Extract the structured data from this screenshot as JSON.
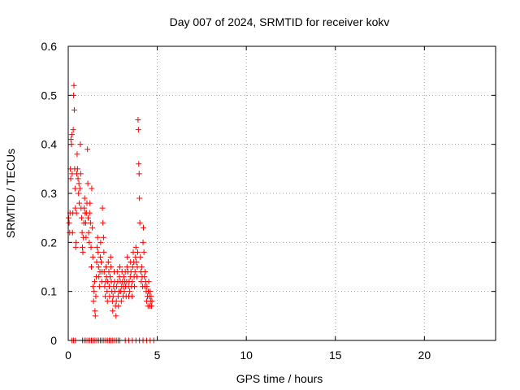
{
  "chart_data": {
    "type": "scatter",
    "title": "Day 007 of 2024, SRMTID for receiver kokv",
    "xlabel": "GPS time / hours",
    "ylabel": "SRMTID / TECUs",
    "xlim": [
      0,
      24
    ],
    "ylim": [
      0,
      0.6
    ],
    "x_ticks": [
      0,
      5,
      10,
      15,
      20
    ],
    "y_ticks": [
      0,
      0.1,
      0.2,
      0.3,
      0.4,
      0.5,
      0.6
    ],
    "grid": true,
    "marker": "+",
    "color": "#ff0000",
    "series": [
      {
        "name": "SRMTID",
        "points": [
          [
            0.02,
            0.25
          ],
          [
            0.05,
            0.24
          ],
          [
            0.08,
            0.22
          ],
          [
            0.1,
            0.26
          ],
          [
            0.12,
            0.35
          ],
          [
            0.14,
            0.33
          ],
          [
            0.15,
            0.41
          ],
          [
            0.18,
            0.4
          ],
          [
            0.2,
            0.42
          ],
          [
            0.22,
            0.34
          ],
          [
            0.24,
            0.22
          ],
          [
            0.26,
            0.26
          ],
          [
            0.28,
            0.43
          ],
          [
            0.3,
            0.5
          ],
          [
            0.32,
            0.52
          ],
          [
            0.34,
            0.47
          ],
          [
            0.36,
            0.35
          ],
          [
            0.38,
            0.31
          ],
          [
            0.4,
            0.27
          ],
          [
            0.42,
            0.19
          ],
          [
            0.44,
            0.2
          ],
          [
            0.46,
            0.26
          ],
          [
            0.48,
            0.34
          ],
          [
            0.5,
            0.38
          ],
          [
            0.52,
            0.35
          ],
          [
            0.55,
            0.33
          ],
          [
            0.58,
            0.3
          ],
          [
            0.6,
            0.32
          ],
          [
            0.62,
            0.28
          ],
          [
            0.65,
            0.31
          ],
          [
            0.68,
            0.4
          ],
          [
            0.7,
            0.34
          ],
          [
            0.72,
            0.27
          ],
          [
            0.75,
            0.25
          ],
          [
            0.78,
            0.22
          ],
          [
            0.8,
            0.19
          ],
          [
            0.82,
            0.18
          ],
          [
            0.85,
            0.21
          ],
          [
            0.88,
            0.24
          ],
          [
            0.9,
            0.27
          ],
          [
            0.92,
            0.29
          ],
          [
            0.95,
            0.26
          ],
          [
            0.98,
            0.24
          ],
          [
            1.0,
            0.21
          ],
          [
            1.02,
            0.26
          ],
          [
            1.05,
            0.28
          ],
          [
            1.08,
            0.39
          ],
          [
            1.1,
            0.32
          ],
          [
            1.12,
            0.25
          ],
          [
            1.15,
            0.22
          ],
          [
            1.18,
            0.2
          ],
          [
            1.2,
            0.26
          ],
          [
            1.22,
            0.28
          ],
          [
            1.25,
            0.24
          ],
          [
            1.28,
            0.19
          ],
          [
            1.3,
            0.15
          ],
          [
            1.32,
            0.31
          ],
          [
            1.35,
            0.23
          ],
          [
            1.38,
            0.17
          ],
          [
            1.4,
            0.11
          ],
          [
            1.42,
            0.08
          ],
          [
            1.45,
            0.1
          ],
          [
            1.48,
            0.12
          ],
          [
            1.5,
            0.06
          ],
          [
            1.52,
            0.05
          ],
          [
            1.55,
            0.09
          ],
          [
            1.58,
            0.13
          ],
          [
            1.6,
            0.16
          ],
          [
            1.62,
            0.19
          ],
          [
            1.65,
            0.21
          ],
          [
            1.68,
            0.18
          ],
          [
            1.7,
            0.15
          ],
          [
            1.72,
            0.13
          ],
          [
            1.75,
            0.11
          ],
          [
            1.78,
            0.14
          ],
          [
            1.8,
            0.17
          ],
          [
            1.82,
            0.2
          ],
          [
            1.85,
            0.16
          ],
          [
            1.88,
            0.12
          ],
          [
            1.9,
            0.14
          ],
          [
            1.92,
            0.27
          ],
          [
            1.95,
            0.24
          ],
          [
            1.98,
            0.21
          ],
          [
            2.0,
            0.18
          ],
          [
            2.02,
            0.14
          ],
          [
            2.05,
            0.11
          ],
          [
            2.08,
            0.09
          ],
          [
            2.1,
            0.12
          ],
          [
            2.12,
            0.15
          ],
          [
            2.15,
            0.13
          ],
          [
            2.18,
            0.1
          ],
          [
            2.2,
            0.08
          ],
          [
            2.22,
            0.12
          ],
          [
            2.25,
            0.16
          ],
          [
            2.28,
            0.14
          ],
          [
            2.3,
            0.11
          ],
          [
            2.32,
            0.09
          ],
          [
            2.35,
            0.13
          ],
          [
            2.38,
            0.17
          ],
          [
            2.4,
            0.15
          ],
          [
            2.42,
            0.12
          ],
          [
            2.45,
            0.1
          ],
          [
            2.48,
            0.08
          ],
          [
            2.5,
            0.06
          ],
          [
            2.52,
            0.09
          ],
          [
            2.55,
            0.11
          ],
          [
            2.58,
            0.14
          ],
          [
            2.6,
            0.12
          ],
          [
            2.62,
            0.1
          ],
          [
            2.65,
            0.07
          ],
          [
            2.68,
            0.05
          ],
          [
            2.7,
            0.08
          ],
          [
            2.72,
            0.11
          ],
          [
            2.75,
            0.14
          ],
          [
            2.78,
            0.12
          ],
          [
            2.8,
            0.09
          ],
          [
            2.82,
            0.07
          ],
          [
            2.85,
            0.1
          ],
          [
            2.88,
            0.13
          ],
          [
            2.9,
            0.15
          ],
          [
            2.92,
            0.12
          ],
          [
            2.95,
            0.1
          ],
          [
            2.98,
            0.08
          ],
          [
            3.0,
            0.11
          ],
          [
            3.02,
            0.14
          ],
          [
            3.05,
            0.12
          ],
          [
            3.08,
            0.09
          ],
          [
            3.1,
            0.11
          ],
          [
            3.12,
            0.13
          ],
          [
            3.15,
            0.1
          ],
          [
            3.18,
            0.12
          ],
          [
            3.2,
            0.14
          ],
          [
            3.22,
            0.11
          ],
          [
            3.25,
            0.09
          ],
          [
            3.28,
            0.12
          ],
          [
            3.3,
            0.15
          ],
          [
            3.32,
            0.17
          ],
          [
            3.35,
            0.14
          ],
          [
            3.38,
            0.11
          ],
          [
            3.4,
            0.09
          ],
          [
            3.42,
            0.12
          ],
          [
            3.45,
            0.1
          ],
          [
            3.48,
            0.13
          ],
          [
            3.5,
            0.16
          ],
          [
            3.52,
            0.14
          ],
          [
            3.55,
            0.11
          ],
          [
            3.58,
            0.09
          ],
          [
            3.6,
            0.12
          ],
          [
            3.62,
            0.15
          ],
          [
            3.65,
            0.18
          ],
          [
            3.68,
            0.16
          ],
          [
            3.7,
            0.13
          ],
          [
            3.72,
            0.11
          ],
          [
            3.75,
            0.14
          ],
          [
            3.78,
            0.17
          ],
          [
            3.8,
            0.19
          ],
          [
            3.82,
            0.16
          ],
          [
            3.85,
            0.13
          ],
          [
            3.88,
            0.15
          ],
          [
            3.9,
            0.18
          ],
          [
            3.92,
            0.45
          ],
          [
            3.94,
            0.43
          ],
          [
            3.96,
            0.36
          ],
          [
            3.98,
            0.34
          ],
          [
            4.0,
            0.29
          ],
          [
            4.02,
            0.24
          ],
          [
            4.05,
            0.17
          ],
          [
            4.08,
            0.14
          ],
          [
            4.1,
            0.12
          ],
          [
            4.12,
            0.15
          ],
          [
            4.15,
            0.13
          ],
          [
            4.18,
            0.11
          ],
          [
            4.2,
            0.2
          ],
          [
            4.22,
            0.23
          ],
          [
            4.25,
            0.18
          ],
          [
            4.28,
            0.13
          ],
          [
            4.3,
            0.11
          ],
          [
            4.32,
            0.14
          ],
          [
            4.35,
            0.12
          ],
          [
            4.38,
            0.1
          ],
          [
            4.4,
            0.08
          ],
          [
            4.42,
            0.11
          ],
          [
            4.45,
            0.09
          ],
          [
            4.48,
            0.07
          ],
          [
            4.5,
            0.1
          ],
          [
            4.52,
            0.12
          ],
          [
            4.55,
            0.09
          ],
          [
            4.58,
            0.07
          ],
          [
            4.6,
            0.1
          ],
          [
            4.62,
            0.08
          ],
          [
            4.65,
            0.09
          ],
          [
            4.68,
            0.07
          ],
          [
            4.7,
            0.08
          ],
          [
            0.2,
            0
          ],
          [
            0.3,
            0
          ],
          [
            0.4,
            0
          ],
          [
            0.8,
            0
          ],
          [
            0.9,
            0
          ],
          [
            1.0,
            0
          ],
          [
            1.1,
            0
          ],
          [
            1.2,
            0
          ],
          [
            1.3,
            0
          ],
          [
            1.4,
            0
          ],
          [
            1.5,
            0
          ],
          [
            1.6,
            0
          ],
          [
            1.7,
            0
          ],
          [
            1.8,
            0
          ],
          [
            1.9,
            0
          ],
          [
            2.0,
            0
          ],
          [
            2.1,
            0
          ],
          [
            2.2,
            0
          ],
          [
            2.3,
            0
          ],
          [
            2.4,
            0
          ],
          [
            2.5,
            0
          ],
          [
            2.6,
            0
          ],
          [
            2.7,
            0
          ],
          [
            2.8,
            0
          ],
          [
            2.9,
            0
          ],
          [
            3.2,
            0
          ],
          [
            3.4,
            0
          ],
          [
            3.6,
            0
          ],
          [
            3.8,
            0
          ],
          [
            4.0,
            0
          ],
          [
            4.2,
            0
          ],
          [
            4.4,
            0
          ],
          [
            4.6,
            0
          ],
          [
            4.8,
            0
          ]
        ]
      }
    ]
  }
}
